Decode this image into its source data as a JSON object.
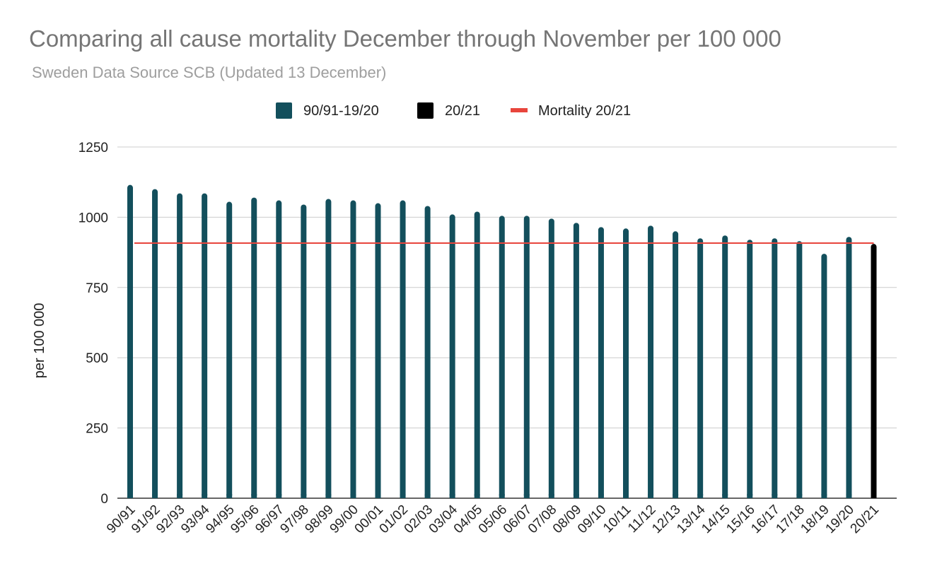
{
  "chart_data": {
    "type": "bar",
    "title": "Comparing all cause mortality December through November per 100 000",
    "subtitle": "Sweden Data Source SCB (Updated 13 December)",
    "xlabel": "",
    "ylabel": "per 100 000",
    "ylim": [
      0,
      1250
    ],
    "yticks": [
      0,
      250,
      500,
      750,
      1000,
      1250
    ],
    "grid": true,
    "legend_position": "top",
    "categories": [
      "90/91",
      "91/92",
      "92/93",
      "93/94",
      "94/95",
      "95/96",
      "96/97",
      "97/98",
      "98/99",
      "99/00",
      "00/01",
      "01/02",
      "02/03",
      "03/04",
      "04/05",
      "05/06",
      "06/07",
      "07/08",
      "08/09",
      "09/10",
      "10/11",
      "11/12",
      "12/13",
      "13/14",
      "14/15",
      "15/16",
      "16/17",
      "17/18",
      "18/19",
      "19/20",
      "20/21"
    ],
    "series": [
      {
        "name": "90/91-19/20",
        "color": "#134f5c",
        "values": [
          1115,
          1100,
          1085,
          1085,
          1055,
          1070,
          1060,
          1045,
          1065,
          1060,
          1050,
          1060,
          1040,
          1010,
          1020,
          1005,
          1005,
          995,
          980,
          965,
          960,
          970,
          950,
          925,
          935,
          920,
          925,
          915,
          870,
          930,
          null
        ]
      },
      {
        "name": "20/21",
        "color": "#000000",
        "values": [
          null,
          null,
          null,
          null,
          null,
          null,
          null,
          null,
          null,
          null,
          null,
          null,
          null,
          null,
          null,
          null,
          null,
          null,
          null,
          null,
          null,
          null,
          null,
          null,
          null,
          null,
          null,
          null,
          null,
          null,
          905
        ]
      },
      {
        "name": "Mortality 20/21",
        "type": "line",
        "color": "#e8453c",
        "value": 908
      }
    ]
  }
}
